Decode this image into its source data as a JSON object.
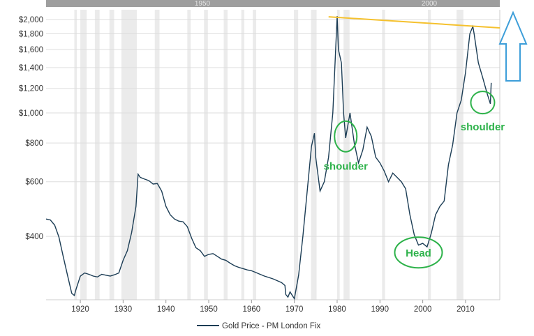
{
  "chart_data": {
    "type": "line",
    "title": "",
    "xlabel": "",
    "ylabel": "",
    "y_scale": "log",
    "xlim": [
      1912,
      2018
    ],
    "ylim": [
      250,
      2150
    ],
    "grid": true,
    "y_ticks": [
      {
        "value": 2000,
        "label": "$2,000"
      },
      {
        "value": 1800,
        "label": "$1,800"
      },
      {
        "value": 1600,
        "label": "$1,600"
      },
      {
        "value": 1400,
        "label": "$1,400"
      },
      {
        "value": 1200,
        "label": "$1,200"
      },
      {
        "value": 1000,
        "label": "$1,000"
      },
      {
        "value": 800,
        "label": "$800"
      },
      {
        "value": 600,
        "label": "$600"
      },
      {
        "value": 400,
        "label": "$400"
      }
    ],
    "x_ticks": [
      {
        "value": 1920,
        "label": "1920"
      },
      {
        "value": 1930,
        "label": "1930"
      },
      {
        "value": 1940,
        "label": "1940"
      },
      {
        "value": 1950,
        "label": "1950"
      },
      {
        "value": 1960,
        "label": "1960"
      },
      {
        "value": 1970,
        "label": "1970"
      },
      {
        "value": 1980,
        "label": "1980"
      },
      {
        "value": 1990,
        "label": "1990"
      },
      {
        "value": 2000,
        "label": "2000"
      },
      {
        "value": 2010,
        "label": "2010"
      }
    ],
    "shaded_periods": [
      [
        1918.6,
        1919.2
      ],
      [
        1920.0,
        1921.5
      ],
      [
        1923.4,
        1924.5
      ],
      [
        1926.8,
        1927.9
      ],
      [
        1929.6,
        1933.2
      ],
      [
        1937.4,
        1938.5
      ],
      [
        1945.0,
        1945.8
      ],
      [
        1948.9,
        1949.8
      ],
      [
        1953.5,
        1954.4
      ],
      [
        1957.6,
        1958.3
      ],
      [
        1960.3,
        1961.1
      ],
      [
        1969.9,
        1970.9
      ],
      [
        1973.9,
        1975.2
      ],
      [
        1980.0,
        1980.6
      ],
      [
        1981.5,
        1982.9
      ],
      [
        1990.5,
        1991.2
      ],
      [
        2001.2,
        2001.9
      ],
      [
        2007.9,
        2009.5
      ]
    ],
    "series": [
      {
        "name": "Gold Price - PM London Fix",
        "color": "#1c3d55",
        "points": [
          [
            1912,
            455
          ],
          [
            1913,
            452
          ],
          [
            1914,
            435
          ],
          [
            1915,
            398
          ],
          [
            1916,
            345
          ],
          [
            1917,
            300
          ],
          [
            1918,
            262
          ],
          [
            1918.6,
            258
          ],
          [
            1919,
            270
          ],
          [
            1920,
            298
          ],
          [
            1921,
            305
          ],
          [
            1922,
            302
          ],
          [
            1923,
            298
          ],
          [
            1924,
            296
          ],
          [
            1925,
            302
          ],
          [
            1926,
            300
          ],
          [
            1927,
            298
          ],
          [
            1928,
            301
          ],
          [
            1929,
            305
          ],
          [
            1930,
            335
          ],
          [
            1931,
            360
          ],
          [
            1932,
            412
          ],
          [
            1933,
            500
          ],
          [
            1933.5,
            635
          ],
          [
            1934,
            620
          ],
          [
            1935,
            612
          ],
          [
            1936,
            605
          ],
          [
            1937,
            590
          ],
          [
            1938,
            592
          ],
          [
            1939,
            560
          ],
          [
            1940,
            500
          ],
          [
            1941,
            470
          ],
          [
            1942,
            455
          ],
          [
            1943,
            448
          ],
          [
            1944,
            446
          ],
          [
            1945,
            430
          ],
          [
            1946,
            395
          ],
          [
            1947,
            368
          ],
          [
            1948,
            360
          ],
          [
            1949,
            345
          ],
          [
            1950,
            350
          ],
          [
            1951,
            352
          ],
          [
            1952,
            345
          ],
          [
            1953,
            338
          ],
          [
            1954,
            335
          ],
          [
            1955,
            328
          ],
          [
            1956,
            322
          ],
          [
            1957,
            318
          ],
          [
            1958,
            315
          ],
          [
            1959,
            312
          ],
          [
            1960,
            310
          ],
          [
            1961,
            306
          ],
          [
            1962,
            302
          ],
          [
            1963,
            298
          ],
          [
            1964,
            295
          ],
          [
            1965,
            292
          ],
          [
            1966,
            288
          ],
          [
            1967,
            284
          ],
          [
            1967.8,
            278
          ],
          [
            1968,
            260
          ],
          [
            1968.5,
            255
          ],
          [
            1969,
            265
          ],
          [
            1970,
            252
          ],
          [
            1971,
            300
          ],
          [
            1972,
            400
          ],
          [
            1973,
            560
          ],
          [
            1974,
            780
          ],
          [
            1974.7,
            860
          ],
          [
            1975,
            720
          ],
          [
            1976,
            560
          ],
          [
            1977,
            600
          ],
          [
            1978,
            720
          ],
          [
            1979,
            1000
          ],
          [
            1980,
            2050
          ],
          [
            1980.3,
            1600
          ],
          [
            1981,
            1450
          ],
          [
            1981.5,
            1000
          ],
          [
            1982,
            830
          ],
          [
            1983,
            1000
          ],
          [
            1984,
            800
          ],
          [
            1985,
            690
          ],
          [
            1986,
            760
          ],
          [
            1987,
            900
          ],
          [
            1988,
            840
          ],
          [
            1989,
            720
          ],
          [
            1990,
            690
          ],
          [
            1991,
            650
          ],
          [
            1992,
            600
          ],
          [
            1993,
            640
          ],
          [
            1994,
            620
          ],
          [
            1995,
            600
          ],
          [
            1996,
            570
          ],
          [
            1997,
            470
          ],
          [
            1998,
            405
          ],
          [
            1999,
            375
          ],
          [
            2000,
            380
          ],
          [
            2001,
            370
          ],
          [
            2002,
            410
          ],
          [
            2003,
            470
          ],
          [
            2004,
            500
          ],
          [
            2005,
            520
          ],
          [
            2006,
            680
          ],
          [
            2007,
            790
          ],
          [
            2008,
            1000
          ],
          [
            2009,
            1100
          ],
          [
            2010,
            1350
          ],
          [
            2011,
            1800
          ],
          [
            2011.7,
            1900
          ],
          [
            2012,
            1800
          ],
          [
            2013,
            1450
          ],
          [
            2014,
            1300
          ],
          [
            2015,
            1160
          ],
          [
            2015.8,
            1070
          ],
          [
            2016,
            1250
          ]
        ]
      }
    ],
    "trendline": {
      "color": "#f5c12e",
      "from": [
        1978,
        2040
      ],
      "to": [
        2018,
        1880
      ]
    },
    "annotations": [
      {
        "text": "shoulder",
        "color": "#2db24a",
        "circle_center": [
          1982,
          840
        ]
      },
      {
        "text": "Head",
        "color": "#2db24a",
        "circle_center": [
          1999,
          355
        ]
      },
      {
        "text": "shoulder",
        "color": "#2db24a",
        "circle_center": [
          2014,
          1080
        ]
      }
    ],
    "arrow": {
      "color": "#3d9ed9",
      "direction": "up"
    },
    "legend": {
      "position": "bottom-center"
    },
    "navigator_labels": [
      "1950",
      "2000"
    ]
  }
}
